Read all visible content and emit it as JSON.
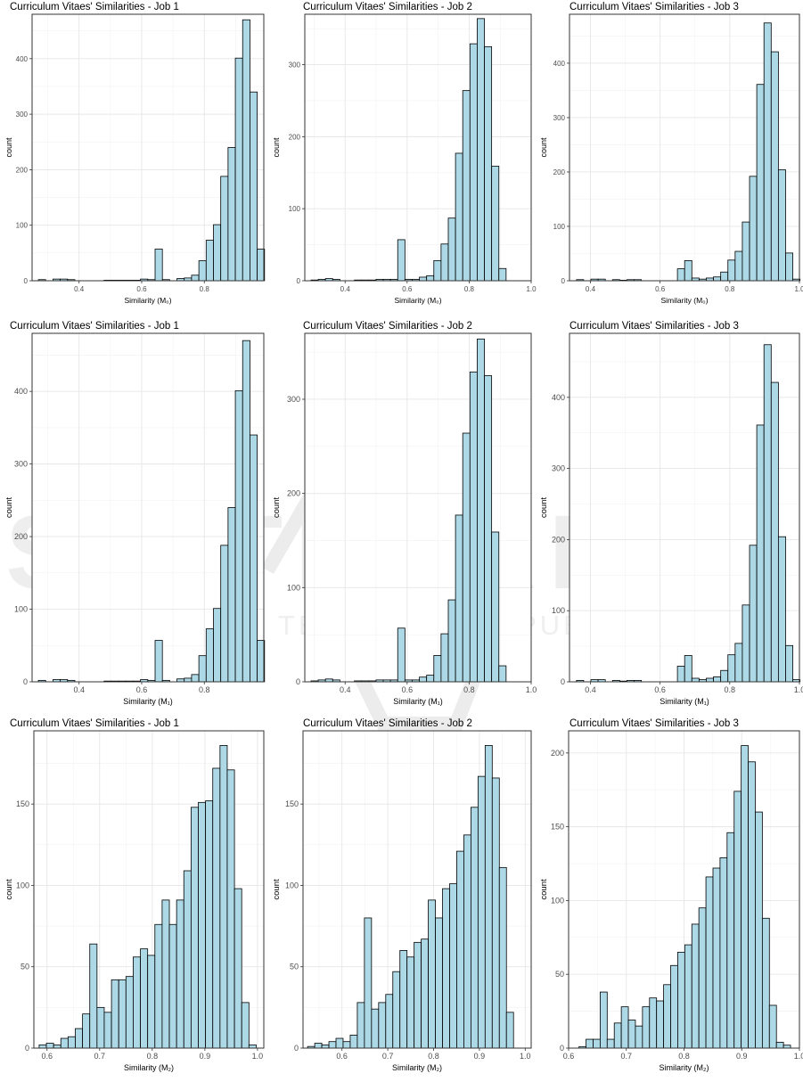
{
  "watermark": {
    "text": "SCITEPRESS",
    "subtitle": "SCIENCE AND TECHNOLOGY PUBLICATIONS"
  },
  "colors": {
    "bar_fill": "#add8e6",
    "bar_stroke": "#000000",
    "grid_major": "#e6e6e6",
    "grid_minor": "#f2f2f2",
    "axis_text": "#4d4d4d",
    "panel_border": "#333333",
    "watermark": "#eeeeee"
  },
  "chart_data": [
    {
      "type": "bar",
      "title": "Curriculum Vitaes' Similarities - Job 1",
      "xlabel": "Similarity (M₀)",
      "ylabel": "count",
      "xlim": [
        0.25,
        0.99
      ],
      "ylim": [
        0,
        480
      ],
      "xticks": [
        0.4,
        0.6,
        0.8,
        1.0
      ],
      "xtick_labels": [
        "0.4",
        "0.6",
        "0.8",
        "1.0"
      ],
      "yticks": [
        0,
        100,
        200,
        300,
        400
      ],
      "ytick_labels": [
        "0",
        "100",
        "200",
        "300",
        "400"
      ],
      "bin_start": 0.27,
      "bin_width": 0.0233,
      "counts": [
        2,
        0,
        3,
        3,
        2,
        0,
        0,
        0,
        0,
        1,
        1,
        1,
        1,
        1,
        3,
        2,
        57,
        2,
        0,
        4,
        5,
        10,
        36,
        73,
        101,
        188,
        240,
        401,
        470,
        340,
        57
      ]
    },
    {
      "type": "bar",
      "title": "Curriculum Vitaes' Similarities - Job 2",
      "xlabel": "Similarity (M₀)",
      "ylabel": "count",
      "xlim": [
        0.27,
        1.0
      ],
      "ylim": [
        0,
        370
      ],
      "xticks": [
        0.4,
        0.6,
        0.8,
        1.0
      ],
      "xtick_labels": [
        "0.4",
        "0.6",
        "0.8",
        "1.0"
      ],
      "yticks": [
        0,
        100,
        200,
        300
      ],
      "ytick_labels": [
        "0",
        "100",
        "200",
        "300"
      ],
      "bin_start": 0.29,
      "bin_width": 0.0233,
      "counts": [
        1,
        2,
        3,
        2,
        0,
        0,
        1,
        1,
        1,
        2,
        2,
        2,
        57,
        2,
        2,
        5,
        7,
        28,
        51,
        87,
        177,
        264,
        329,
        364,
        325,
        159,
        17
      ]
    },
    {
      "type": "bar",
      "title": "Curriculum Vitaes' Similarities - Job  3",
      "xlabel": "Similarity (M₀)",
      "ylabel": "count",
      "xlim": [
        0.34,
        1.0
      ],
      "ylim": [
        0,
        490
      ],
      "xticks": [
        0.4,
        0.6,
        0.8,
        1.0
      ],
      "xtick_labels": [
        "0.4",
        "0.6",
        "0.8",
        "1.0"
      ],
      "yticks": [
        0,
        100,
        200,
        300,
        400
      ],
      "ytick_labels": [
        "0",
        "100",
        "200",
        "300",
        "400"
      ],
      "bin_start": 0.36,
      "bin_width": 0.0207,
      "counts": [
        2,
        0,
        3,
        3,
        0,
        2,
        1,
        2,
        2,
        0,
        0,
        0,
        0,
        0,
        22,
        37,
        5,
        3,
        5,
        7,
        16,
        38,
        54,
        108,
        192,
        361,
        474,
        421,
        204,
        51,
        3
      ]
    },
    {
      "type": "bar",
      "title": "Curriculum Vitaes' Similarities - Job 1",
      "xlabel": "Similarity (M₁)",
      "ylabel": "count",
      "xlim": [
        0.25,
        0.99
      ],
      "ylim": [
        0,
        480
      ],
      "xticks": [
        0.4,
        0.6,
        0.8,
        1.0
      ],
      "xtick_labels": [
        "0.4",
        "0.6",
        "0.8",
        "1.0"
      ],
      "yticks": [
        0,
        100,
        200,
        300,
        400
      ],
      "ytick_labels": [
        "0",
        "100",
        "200",
        "300",
        "400"
      ],
      "bin_start": 0.27,
      "bin_width": 0.0233,
      "counts": [
        2,
        0,
        3,
        3,
        2,
        0,
        0,
        0,
        0,
        1,
        1,
        1,
        1,
        1,
        3,
        2,
        57,
        2,
        0,
        4,
        5,
        10,
        36,
        73,
        101,
        188,
        240,
        401,
        470,
        340,
        57
      ]
    },
    {
      "type": "bar",
      "title": "Curriculum Vitaes' Similarities - Job 2",
      "xlabel": "Similarity (M₁)",
      "ylabel": "count",
      "xlim": [
        0.27,
        1.0
      ],
      "ylim": [
        0,
        370
      ],
      "xticks": [
        0.4,
        0.6,
        0.8,
        1.0
      ],
      "xtick_labels": [
        "0.4",
        "0.6",
        "0.8",
        "1.0"
      ],
      "yticks": [
        0,
        100,
        200,
        300
      ],
      "ytick_labels": [
        "0",
        "100",
        "200",
        "300"
      ],
      "bin_start": 0.29,
      "bin_width": 0.0233,
      "counts": [
        1,
        2,
        3,
        2,
        0,
        0,
        1,
        1,
        1,
        2,
        2,
        2,
        57,
        2,
        2,
        5,
        7,
        28,
        51,
        87,
        177,
        264,
        329,
        364,
        325,
        159,
        17
      ]
    },
    {
      "type": "bar",
      "title": "Curriculum Vitaes' Similarities - Job  3",
      "xlabel": "Similarity (M₁)",
      "ylabel": "count",
      "xlim": [
        0.34,
        1.0
      ],
      "ylim": [
        0,
        490
      ],
      "xticks": [
        0.4,
        0.6,
        0.8,
        1.0
      ],
      "xtick_labels": [
        "0.4",
        "0.6",
        "0.8",
        "1.0"
      ],
      "yticks": [
        0,
        100,
        200,
        300,
        400
      ],
      "ytick_labels": [
        "0",
        "100",
        "200",
        "300",
        "400"
      ],
      "bin_start": 0.36,
      "bin_width": 0.0207,
      "counts": [
        2,
        0,
        3,
        3,
        0,
        2,
        1,
        2,
        2,
        0,
        0,
        0,
        0,
        0,
        22,
        37,
        5,
        3,
        5,
        7,
        16,
        38,
        54,
        108,
        192,
        361,
        474,
        421,
        204,
        51,
        3
      ]
    },
    {
      "type": "bar",
      "title": "Curriculum Vitaes' Similarities - Job 1",
      "xlabel": "Similarity (M₂)",
      "ylabel": "count",
      "xlim": [
        0.575,
        1.012
      ],
      "ylim": [
        0,
        195
      ],
      "xticks": [
        0.6,
        0.7,
        0.8,
        0.9,
        1.0
      ],
      "xtick_labels": [
        "0.6",
        "0.7",
        "0.8",
        "0.9",
        "1.0"
      ],
      "yticks": [
        0,
        50,
        100,
        150
      ],
      "ytick_labels": [
        "0",
        "50",
        "100",
        "150"
      ],
      "bin_start": 0.585,
      "bin_width": 0.01375,
      "counts": [
        2,
        3,
        2,
        6,
        7,
        12,
        21,
        64,
        25,
        22,
        42,
        42,
        44,
        56,
        61,
        57,
        76,
        91,
        76,
        91,
        109,
        148,
        151,
        152,
        172,
        186,
        171,
        98,
        28,
        2
      ]
    },
    {
      "type": "bar",
      "title": "Curriculum Vitaes' Similarities - Job 2",
      "xlabel": "Similarity (M₂)",
      "ylabel": "count",
      "xlim": [
        0.515,
        1.013
      ],
      "ylim": [
        0,
        195
      ],
      "xticks": [
        0.6,
        0.7,
        0.8,
        0.9,
        1.0
      ],
      "xtick_labels": [
        "0.6",
        "0.7",
        "0.8",
        "0.9",
        "1.0"
      ],
      "yticks": [
        0,
        50,
        100,
        150
      ],
      "ytick_labels": [
        "0",
        "50",
        "100",
        "150"
      ],
      "bin_start": 0.525,
      "bin_width": 0.0155,
      "counts": [
        1,
        3,
        2,
        4,
        6,
        4,
        8,
        28,
        80,
        24,
        28,
        33,
        47,
        60,
        56,
        65,
        67,
        91,
        80,
        98,
        101,
        121,
        131,
        148,
        167,
        186,
        166,
        111,
        22
      ]
    },
    {
      "type": "bar",
      "title": "Curriculum Vitaes' Similarities - Job  3",
      "xlabel": "Similarity (M₂)",
      "ylabel": "count",
      "xlim": [
        0.6,
        1.0
      ],
      "ylim": [
        0,
        215
      ],
      "xticks": [
        0.6,
        0.7,
        0.8,
        0.9,
        1.0
      ],
      "xtick_labels": [
        "0.6",
        "0.7",
        "0.8",
        "0.9",
        "1.0"
      ],
      "yticks": [
        0,
        50,
        100,
        150,
        200
      ],
      "ytick_labels": [
        "0",
        "50",
        "100",
        "150",
        "200"
      ],
      "bin_start": 0.618,
      "bin_width": 0.01222,
      "counts": [
        1,
        6,
        6,
        38,
        6,
        17,
        28,
        19,
        15,
        28,
        34,
        32,
        43,
        56,
        65,
        70,
        84,
        95,
        116,
        122,
        129,
        146,
        174,
        205,
        194,
        160,
        88,
        29,
        4,
        2
      ]
    }
  ]
}
